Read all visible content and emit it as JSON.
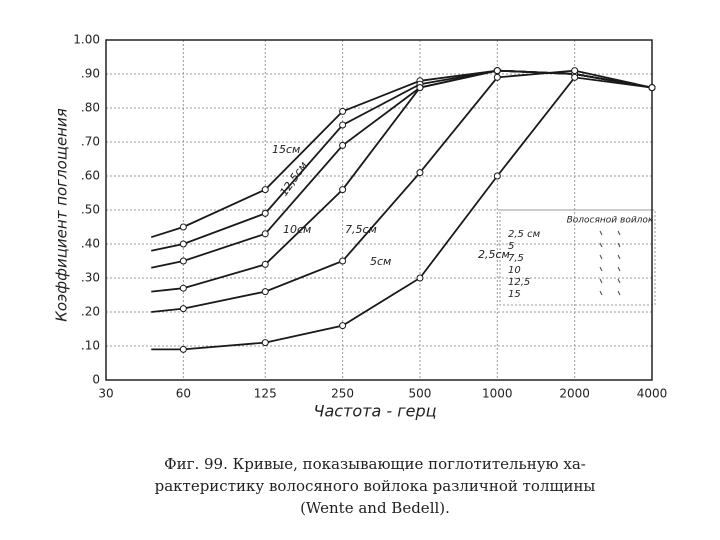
{
  "chart_data": {
    "type": "line",
    "ylabel": "Коэффициент поглощения",
    "xlabel": "Частота - герц",
    "x": [
      45,
      60,
      125,
      250,
      500,
      1000,
      2000,
      4000
    ],
    "xscale": "log",
    "xlim": [
      30,
      4000
    ],
    "xticks": [
      30,
      60,
      125,
      250,
      500,
      1000,
      2000,
      4000
    ],
    "ylim": [
      0,
      1
    ],
    "yticks": [
      0,
      {
        "value": 0.1,
        "label": ".10"
      },
      {
        "value": 0.2,
        "label": ".20"
      },
      {
        "value": 0.3,
        "label": ".30"
      },
      {
        "value": 0.4,
        "label": ".40"
      },
      {
        "value": 0.5,
        "label": ".50"
      },
      {
        "value": 0.6,
        "label": ".60"
      },
      {
        "value": 0.7,
        "label": ".70"
      },
      {
        "value": 0.8,
        "label": ".80"
      },
      {
        "value": 0.9,
        "label": ".90"
      },
      {
        "value": 1,
        "label": "1.00"
      }
    ],
    "grid": true,
    "series": [
      {
        "name": "15см",
        "color": "#1a1a1a",
        "values": [
          0.42,
          0.45,
          0.56,
          0.79,
          0.88,
          0.91,
          0.9,
          0.86
        ]
      },
      {
        "name": "12,5см",
        "color": "#1a1a1a",
        "values": [
          0.38,
          0.4,
          0.49,
          0.75,
          0.87,
          0.91,
          0.9,
          0.86
        ]
      },
      {
        "name": "10см",
        "color": "#1a1a1a",
        "values": [
          0.33,
          0.35,
          0.43,
          0.69,
          0.86,
          0.91,
          0.9,
          0.86
        ]
      },
      {
        "name": "7,5см",
        "color": "#1a1a1a",
        "values": [
          0.26,
          0.27,
          0.34,
          0.56,
          0.86,
          0.91,
          0.9,
          0.86
        ]
      },
      {
        "name": "5см",
        "color": "#1a1a1a",
        "values": [
          0.2,
          0.21,
          0.26,
          0.35,
          0.61,
          0.89,
          0.91,
          0.86
        ]
      },
      {
        "name": "2,5см",
        "color": "#1a1a1a",
        "values": [
          0.09,
          0.09,
          0.11,
          0.16,
          0.3,
          0.6,
          0.89,
          0.86
        ]
      }
    ],
    "legend": {
      "title": "Волосяной войлок",
      "rows": [
        "2,5 см",
        "5",
        "7,5",
        "10",
        "12,5",
        "15"
      ]
    },
    "caption": [
      "Фиг. 99. Кривые, показывающие поглотительную ха-",
      "рактеристику волосяного войлока различной толщины",
      "(Wente and Bedell)."
    ]
  }
}
